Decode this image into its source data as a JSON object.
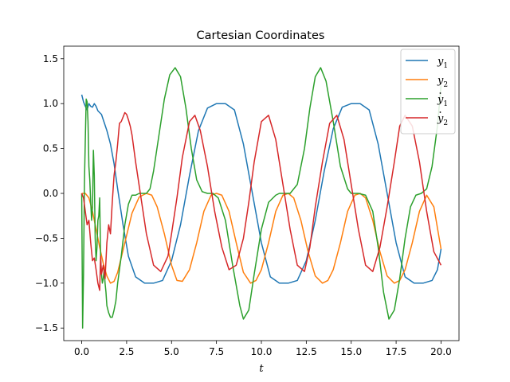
{
  "chart_data": {
    "type": "line",
    "title": "Cartesian Coordinates",
    "xlabel": "t",
    "ylabel": "",
    "xlim": [
      -1.0,
      21.0
    ],
    "ylim": [
      -1.64,
      1.64
    ],
    "xticks": [
      0.0,
      2.5,
      5.0,
      7.5,
      10.0,
      12.5,
      15.0,
      17.5,
      20.0
    ],
    "xtick_labels": [
      "0.0",
      "2.5",
      "5.0",
      "7.5",
      "10.0",
      "12.5",
      "15.0",
      "17.5",
      "20.0"
    ],
    "yticks": [
      -1.5,
      -1.0,
      -0.5,
      0.0,
      0.5,
      1.0,
      1.5
    ],
    "ytick_labels": [
      "−1.5",
      "−1.0",
      "−0.5",
      "0.0",
      "0.5",
      "1.0",
      "1.5"
    ],
    "grid": false,
    "legend_position": "top-right",
    "series": [
      {
        "name": "y1",
        "label_main": "y",
        "label_sub": "1",
        "label_dot": false,
        "color": "#1f77b4",
        "x": [
          0.0,
          0.1,
          0.2,
          0.3,
          0.4,
          0.5,
          0.6,
          0.7,
          0.8,
          0.9,
          1.0,
          1.1,
          1.2,
          1.4,
          1.6,
          1.8,
          2.0,
          2.3,
          2.6,
          3.0,
          3.5,
          4.0,
          4.5,
          5.0,
          5.5,
          6.0,
          6.5,
          7.0,
          7.5,
          8.0,
          8.5,
          9.0,
          9.5,
          10.0,
          10.5,
          11.0,
          11.5,
          12.0,
          12.5,
          13.0,
          13.5,
          14.0,
          14.5,
          15.0,
          15.5,
          16.0,
          16.5,
          17.0,
          17.5,
          18.0,
          18.5,
          19.0,
          19.5,
          19.8,
          20.0
        ],
        "y": [
          1.1,
          1.02,
          0.97,
          0.93,
          1.0,
          0.97,
          0.96,
          1.0,
          0.97,
          0.92,
          0.9,
          0.88,
          0.82,
          0.7,
          0.55,
          0.33,
          0.05,
          -0.35,
          -0.7,
          -0.93,
          -1.0,
          -1.0,
          -0.97,
          -0.75,
          -0.35,
          0.2,
          0.7,
          0.95,
          1.0,
          1.0,
          0.93,
          0.55,
          0.0,
          -0.55,
          -0.93,
          -1.0,
          -1.0,
          -0.97,
          -0.75,
          -0.3,
          0.25,
          0.72,
          0.96,
          1.0,
          1.0,
          0.93,
          0.55,
          0.0,
          -0.55,
          -0.93,
          -1.0,
          -1.0,
          -0.97,
          -0.85,
          -0.62
        ]
      },
      {
        "name": "y2",
        "label_main": "y",
        "label_sub": "2",
        "label_dot": false,
        "color": "#ff7f0e",
        "x": [
          0.0,
          0.2,
          0.4,
          0.6,
          0.8,
          1.0,
          1.2,
          1.4,
          1.6,
          1.8,
          2.0,
          2.4,
          2.8,
          3.2,
          3.6,
          3.9,
          4.2,
          4.6,
          5.0,
          5.3,
          5.6,
          6.0,
          6.4,
          6.8,
          7.2,
          7.5,
          7.8,
          8.2,
          8.6,
          9.0,
          9.4,
          9.7,
          10.0,
          10.4,
          10.8,
          11.2,
          11.5,
          11.8,
          12.2,
          12.6,
          13.0,
          13.4,
          13.7,
          14.0,
          14.4,
          14.8,
          15.2,
          15.5,
          15.8,
          16.2,
          16.6,
          17.0,
          17.4,
          17.7,
          18.0,
          18.4,
          18.8,
          19.2,
          19.6,
          20.0
        ],
        "y": [
          0.0,
          0.0,
          -0.05,
          -0.2,
          -0.4,
          -0.6,
          -0.78,
          -0.92,
          -1.0,
          -0.98,
          -0.88,
          -0.55,
          -0.22,
          -0.04,
          0.0,
          -0.02,
          -0.15,
          -0.45,
          -0.8,
          -0.97,
          -0.98,
          -0.85,
          -0.55,
          -0.2,
          -0.02,
          0.0,
          -0.02,
          -0.2,
          -0.55,
          -0.88,
          -1.0,
          -0.97,
          -0.85,
          -0.55,
          -0.2,
          -0.02,
          0.0,
          -0.05,
          -0.3,
          -0.65,
          -0.92,
          -1.0,
          -0.97,
          -0.85,
          -0.55,
          -0.2,
          -0.02,
          0.0,
          -0.05,
          -0.3,
          -0.65,
          -0.92,
          -1.0,
          -0.97,
          -0.85,
          -0.55,
          -0.2,
          -0.02,
          -0.15,
          -0.62
        ]
      },
      {
        "name": "y1_dot",
        "label_main": "y",
        "label_sub": "1",
        "label_dot": true,
        "color": "#2ca02c",
        "x": [
          0.0,
          0.05,
          0.1,
          0.15,
          0.2,
          0.25,
          0.3,
          0.35,
          0.4,
          0.45,
          0.5,
          0.55,
          0.6,
          0.65,
          0.7,
          0.75,
          0.8,
          0.85,
          0.9,
          0.95,
          1.0,
          1.05,
          1.1,
          1.15,
          1.2,
          1.25,
          1.3,
          1.35,
          1.4,
          1.5,
          1.6,
          1.7,
          1.8,
          1.9,
          2.0,
          2.2,
          2.4,
          2.6,
          2.8,
          3.0,
          3.2,
          3.4,
          3.6,
          3.8,
          4.0,
          4.3,
          4.6,
          4.9,
          5.2,
          5.5,
          5.8,
          6.1,
          6.4,
          6.7,
          7.0,
          7.3,
          7.6,
          8.0,
          8.4,
          8.8,
          9.0,
          9.3,
          9.6,
          10.0,
          10.4,
          10.8,
          11.0,
          11.3,
          11.6,
          12.0,
          12.4,
          12.7,
          13.0,
          13.3,
          13.6,
          14.0,
          14.4,
          14.8,
          15.0,
          15.4,
          15.8,
          16.2,
          16.5,
          16.8,
          17.1,
          17.4,
          17.7,
          18.0,
          18.3,
          18.6,
          18.9,
          19.2,
          19.5,
          19.8,
          20.0
        ],
        "y": [
          0.0,
          -1.5,
          -0.9,
          0.1,
          0.6,
          1.05,
          1.02,
          0.8,
          0.3,
          0.15,
          -0.1,
          -0.3,
          -0.15,
          0.48,
          0.2,
          -0.5,
          -0.75,
          -0.6,
          -0.3,
          -0.25,
          -0.05,
          -0.7,
          -0.9,
          -1.0,
          -0.95,
          -0.85,
          -1.0,
          -1.1,
          -1.25,
          -1.33,
          -1.38,
          -1.38,
          -1.3,
          -1.2,
          -1.0,
          -0.7,
          -0.35,
          -0.12,
          -0.02,
          -0.02,
          0.0,
          0.0,
          0.0,
          0.05,
          0.25,
          0.65,
          1.05,
          1.32,
          1.4,
          1.3,
          0.95,
          0.5,
          0.15,
          0.02,
          0.0,
          0.0,
          -0.05,
          -0.3,
          -0.8,
          -1.25,
          -1.4,
          -1.3,
          -0.9,
          -0.4,
          -0.1,
          -0.02,
          0.0,
          0.0,
          0.0,
          0.1,
          0.5,
          0.95,
          1.3,
          1.4,
          1.25,
          0.8,
          0.3,
          0.05,
          0.0,
          0.0,
          -0.02,
          -0.2,
          -0.6,
          -1.1,
          -1.4,
          -1.3,
          -0.95,
          -0.5,
          -0.15,
          -0.02,
          0.0,
          0.05,
          0.3,
          0.75,
          1.2
        ]
      },
      {
        "name": "y2_dot",
        "label_main": "y",
        "label_sub": "2",
        "label_dot": true,
        "color": "#d62728",
        "x": [
          0.0,
          0.1,
          0.2,
          0.3,
          0.4,
          0.5,
          0.6,
          0.7,
          0.8,
          0.9,
          1.0,
          1.05,
          1.1,
          1.2,
          1.3,
          1.4,
          1.5,
          1.6,
          1.7,
          1.8,
          1.9,
          2.0,
          2.1,
          2.2,
          2.3,
          2.4,
          2.5,
          2.6,
          2.7,
          2.8,
          3.0,
          3.3,
          3.6,
          4.0,
          4.4,
          4.8,
          5.0,
          5.3,
          5.6,
          6.0,
          6.3,
          6.6,
          7.0,
          7.4,
          7.8,
          8.2,
          8.6,
          9.0,
          9.3,
          9.6,
          10.0,
          10.4,
          10.8,
          11.2,
          11.6,
          12.0,
          12.4,
          12.7,
          13.0,
          13.4,
          13.8,
          14.2,
          14.6,
          15.0,
          15.4,
          15.8,
          16.2,
          16.6,
          17.0,
          17.4,
          17.7,
          18.0,
          18.4,
          18.8,
          19.2,
          19.6,
          20.0
        ],
        "y": [
          0.0,
          -0.05,
          -0.2,
          -0.35,
          -0.3,
          -0.55,
          -0.75,
          -0.72,
          -0.85,
          -1.0,
          -1.08,
          -0.7,
          -0.9,
          -0.8,
          -0.95,
          -0.55,
          -0.35,
          -0.45,
          -0.1,
          0.2,
          0.35,
          0.55,
          0.78,
          0.8,
          0.85,
          0.9,
          0.88,
          0.82,
          0.75,
          0.65,
          0.35,
          -0.05,
          -0.45,
          -0.8,
          -0.87,
          -0.7,
          -0.45,
          -0.05,
          0.4,
          0.8,
          0.87,
          0.7,
          0.3,
          -0.2,
          -0.6,
          -0.85,
          -0.8,
          -0.5,
          -0.1,
          0.35,
          0.8,
          0.87,
          0.6,
          0.1,
          -0.4,
          -0.8,
          -0.87,
          -0.6,
          -0.15,
          0.35,
          0.78,
          0.87,
          0.6,
          0.1,
          -0.4,
          -0.8,
          -0.87,
          -0.6,
          -0.15,
          0.35,
          0.75,
          0.87,
          0.75,
          0.35,
          -0.2,
          -0.65,
          -0.8
        ]
      }
    ]
  }
}
